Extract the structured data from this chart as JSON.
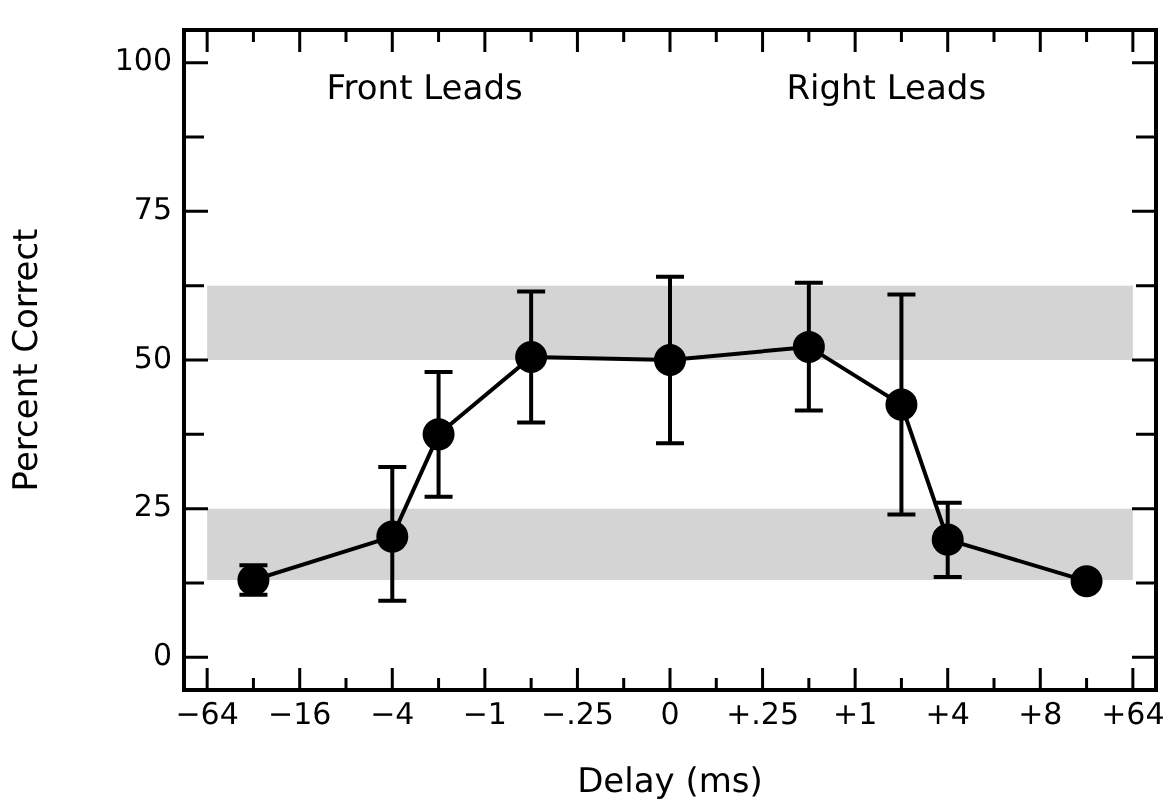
{
  "chart_data": {
    "type": "line",
    "xlabel": "Delay (ms)",
    "ylabel": "Percent Correct",
    "annotations": [
      "Front Leads",
      "Right Leads"
    ],
    "categories": [
      "−64",
      null,
      "−16",
      null,
      "−4",
      null,
      "−1",
      null,
      "−.25",
      null,
      "0",
      null,
      "+.25",
      null,
      "+1",
      null,
      "+4",
      null,
      "+8",
      null,
      "+64"
    ],
    "series": [
      {
        "color": "#000000",
        "values": [
          null,
          13,
          null,
          null,
          20.3,
          37.5,
          null,
          50.5,
          null,
          null,
          50,
          null,
          null,
          52.2,
          null,
          42.5,
          19.8,
          null,
          null,
          12.8,
          null
        ],
        "errors": [
          null,
          2.5,
          null,
          null,
          [
            9.5,
            32
          ],
          [
            27,
            48
          ],
          null,
          [
            39.5,
            61.5
          ],
          null,
          null,
          [
            36,
            64
          ],
          null,
          null,
          [
            41.5,
            63
          ],
          null,
          [
            24,
            61
          ],
          [
            13.5,
            26
          ],
          null,
          null,
          null,
          null
        ]
      }
    ],
    "marker": "circle",
    "line_style": "solid",
    "ylim": [
      -5.5,
      105.5
    ],
    "yticks": [
      0,
      {
        "value": 12.5,
        "label": null
      },
      25,
      {
        "value": 37.5,
        "label": null
      },
      50,
      {
        "value": 62.5,
        "label": null
      },
      75,
      {
        "value": 87.5,
        "label": null
      },
      100
    ],
    "bands": [
      {
        "axis": "y",
        "from": 50,
        "to": 62.5,
        "color": "#d4d4d4"
      },
      {
        "axis": "y",
        "from": 13,
        "to": 25,
        "color": "#d4d4d4"
      }
    ],
    "legend": false
  }
}
